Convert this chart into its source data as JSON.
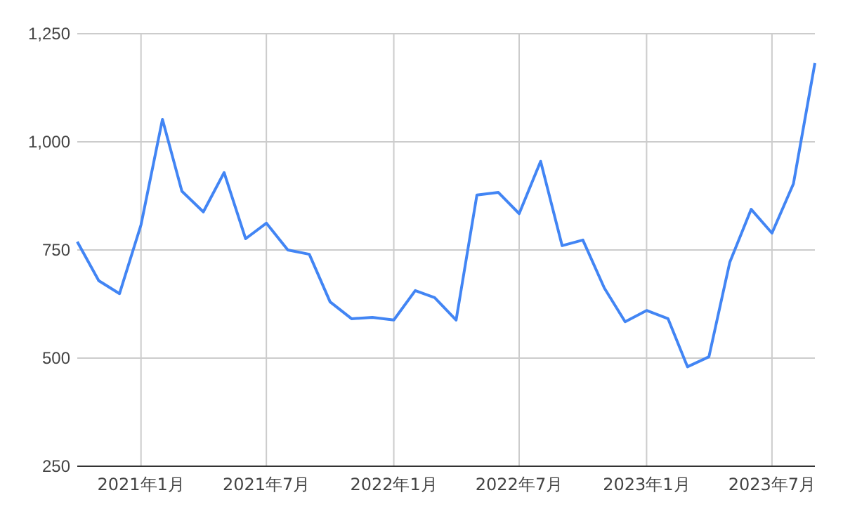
{
  "chart_data": {
    "type": "line",
    "x": [
      "2020-10",
      "2020-11",
      "2020-12",
      "2021-01",
      "2021-02",
      "2021-03",
      "2021-04",
      "2021-05",
      "2021-06",
      "2021-07",
      "2021-08",
      "2021-09",
      "2021-10",
      "2021-11",
      "2021-12",
      "2022-01",
      "2022-02",
      "2022-03",
      "2022-04",
      "2022-05",
      "2022-06",
      "2022-07",
      "2022-08",
      "2022-09",
      "2022-10",
      "2022-11",
      "2022-12",
      "2023-01",
      "2023-02",
      "2023-03",
      "2023-04",
      "2023-05",
      "2023-06",
      "2023-07",
      "2023-08",
      "2023-09"
    ],
    "series": [
      {
        "color": "#4285f4",
        "values": [
          769,
          679,
          649,
          808,
          1052,
          886,
          838,
          929,
          776,
          812,
          750,
          740,
          630,
          591,
          594,
          588,
          656,
          640,
          588,
          877,
          883,
          834,
          955,
          760,
          773,
          662,
          584,
          610,
          591,
          480,
          503,
          721,
          844,
          789,
          903,
          1182
        ]
      }
    ],
    "xlim": [
      "2020-10",
      "2023-09"
    ],
    "xticks": [
      {
        "value": "2021-01",
        "label": "2021年1月"
      },
      {
        "value": "2021-07",
        "label": "2021年7月"
      },
      {
        "value": "2022-01",
        "label": "2022年1月"
      },
      {
        "value": "2022-07",
        "label": "2022年7月"
      },
      {
        "value": "2023-01",
        "label": "2023年1月"
      },
      {
        "value": "2023-07",
        "label": "2023年7月"
      }
    ],
    "ylim": [
      250,
      1250
    ],
    "yticks": [
      {
        "value": 250,
        "label": "250"
      },
      {
        "value": 500,
        "label": "500"
      },
      {
        "value": 750,
        "label": "750"
      },
      {
        "value": 1000,
        "label": "1,000"
      },
      {
        "value": 1250,
        "label": "1,250"
      }
    ],
    "grid": true,
    "line_style": "solid",
    "marker": "none"
  }
}
